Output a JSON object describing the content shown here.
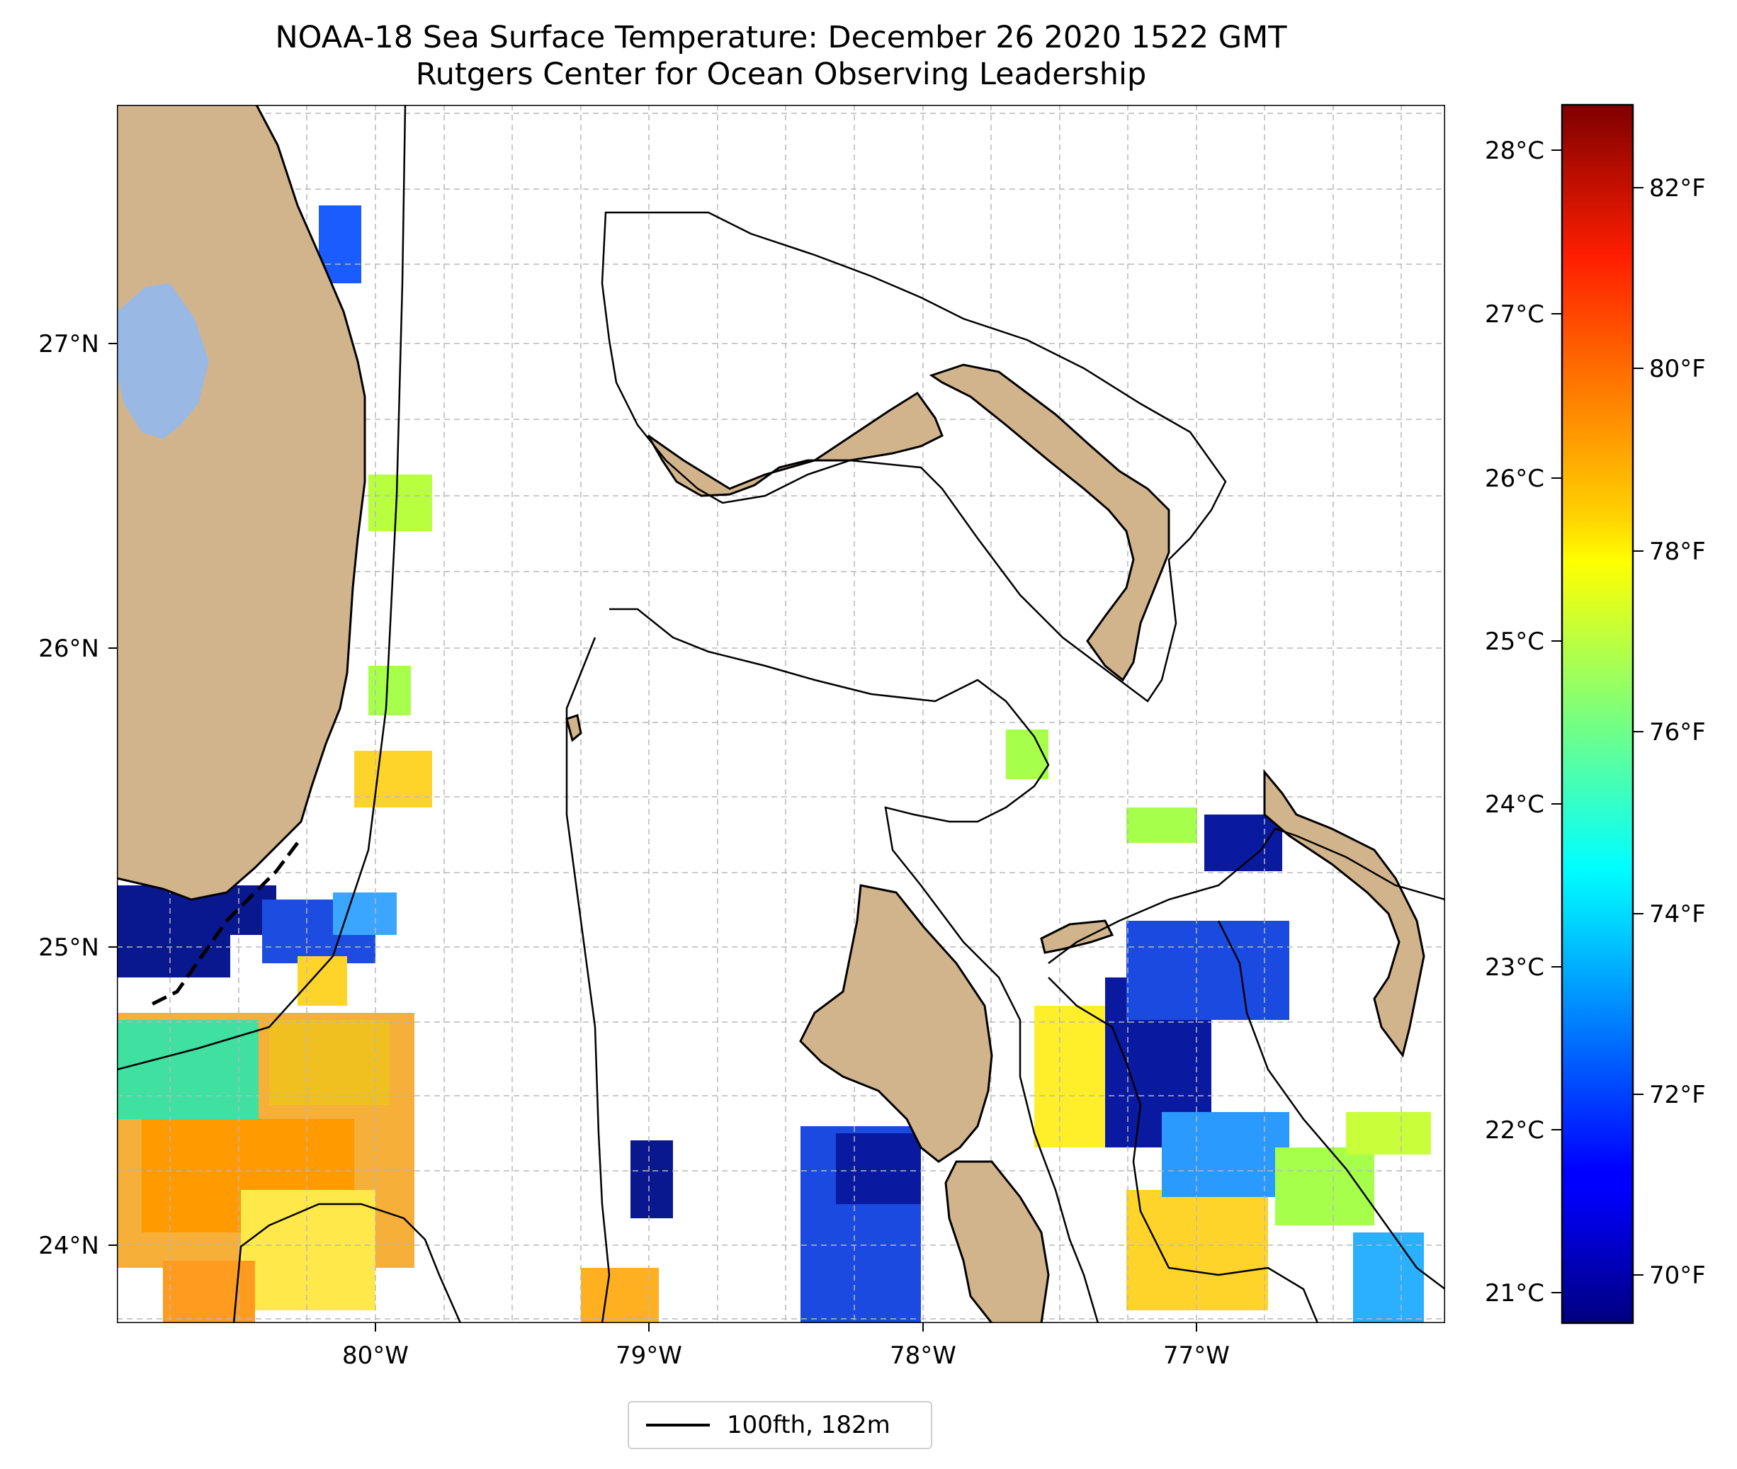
{
  "title": {
    "line1": "NOAA-18 Sea Surface Temperature: December 26 2020 1522 GMT",
    "line2": "Rutgers Center for Ocean Observing Leadership"
  },
  "map": {
    "lon_range": [
      -80.96,
      -76.09
    ],
    "lat_range": [
      23.74,
      27.78
    ],
    "lon_ticks": [
      {
        "value": -80,
        "label": "80°W"
      },
      {
        "value": -79,
        "label": "79°W"
      },
      {
        "value": -78,
        "label": "78°W"
      },
      {
        "value": -77,
        "label": "77°W"
      }
    ],
    "lat_ticks": [
      {
        "value": 24,
        "label": "24°N"
      },
      {
        "value": 25,
        "label": "25°N"
      },
      {
        "value": 26,
        "label": "26°N"
      },
      {
        "value": 27,
        "label": "27°N"
      }
    ],
    "grid": true,
    "colors": {
      "land": "#d2b48c",
      "lake": "#9ab8e4",
      "contour": "#000000"
    }
  },
  "colorbar": {
    "colormap": "jet",
    "celsius_ticks": [
      "28°C",
      "27°C",
      "26°C",
      "25°C",
      "24°C",
      "23°C",
      "22°C",
      "21°C"
    ],
    "fahrenheit_ticks": [
      "82°F",
      "80°F",
      "78°F",
      "76°F",
      "74°F",
      "72°F",
      "70°F"
    ]
  },
  "legend": {
    "label": "100fth, 182m",
    "placement": "bottom-center"
  }
}
